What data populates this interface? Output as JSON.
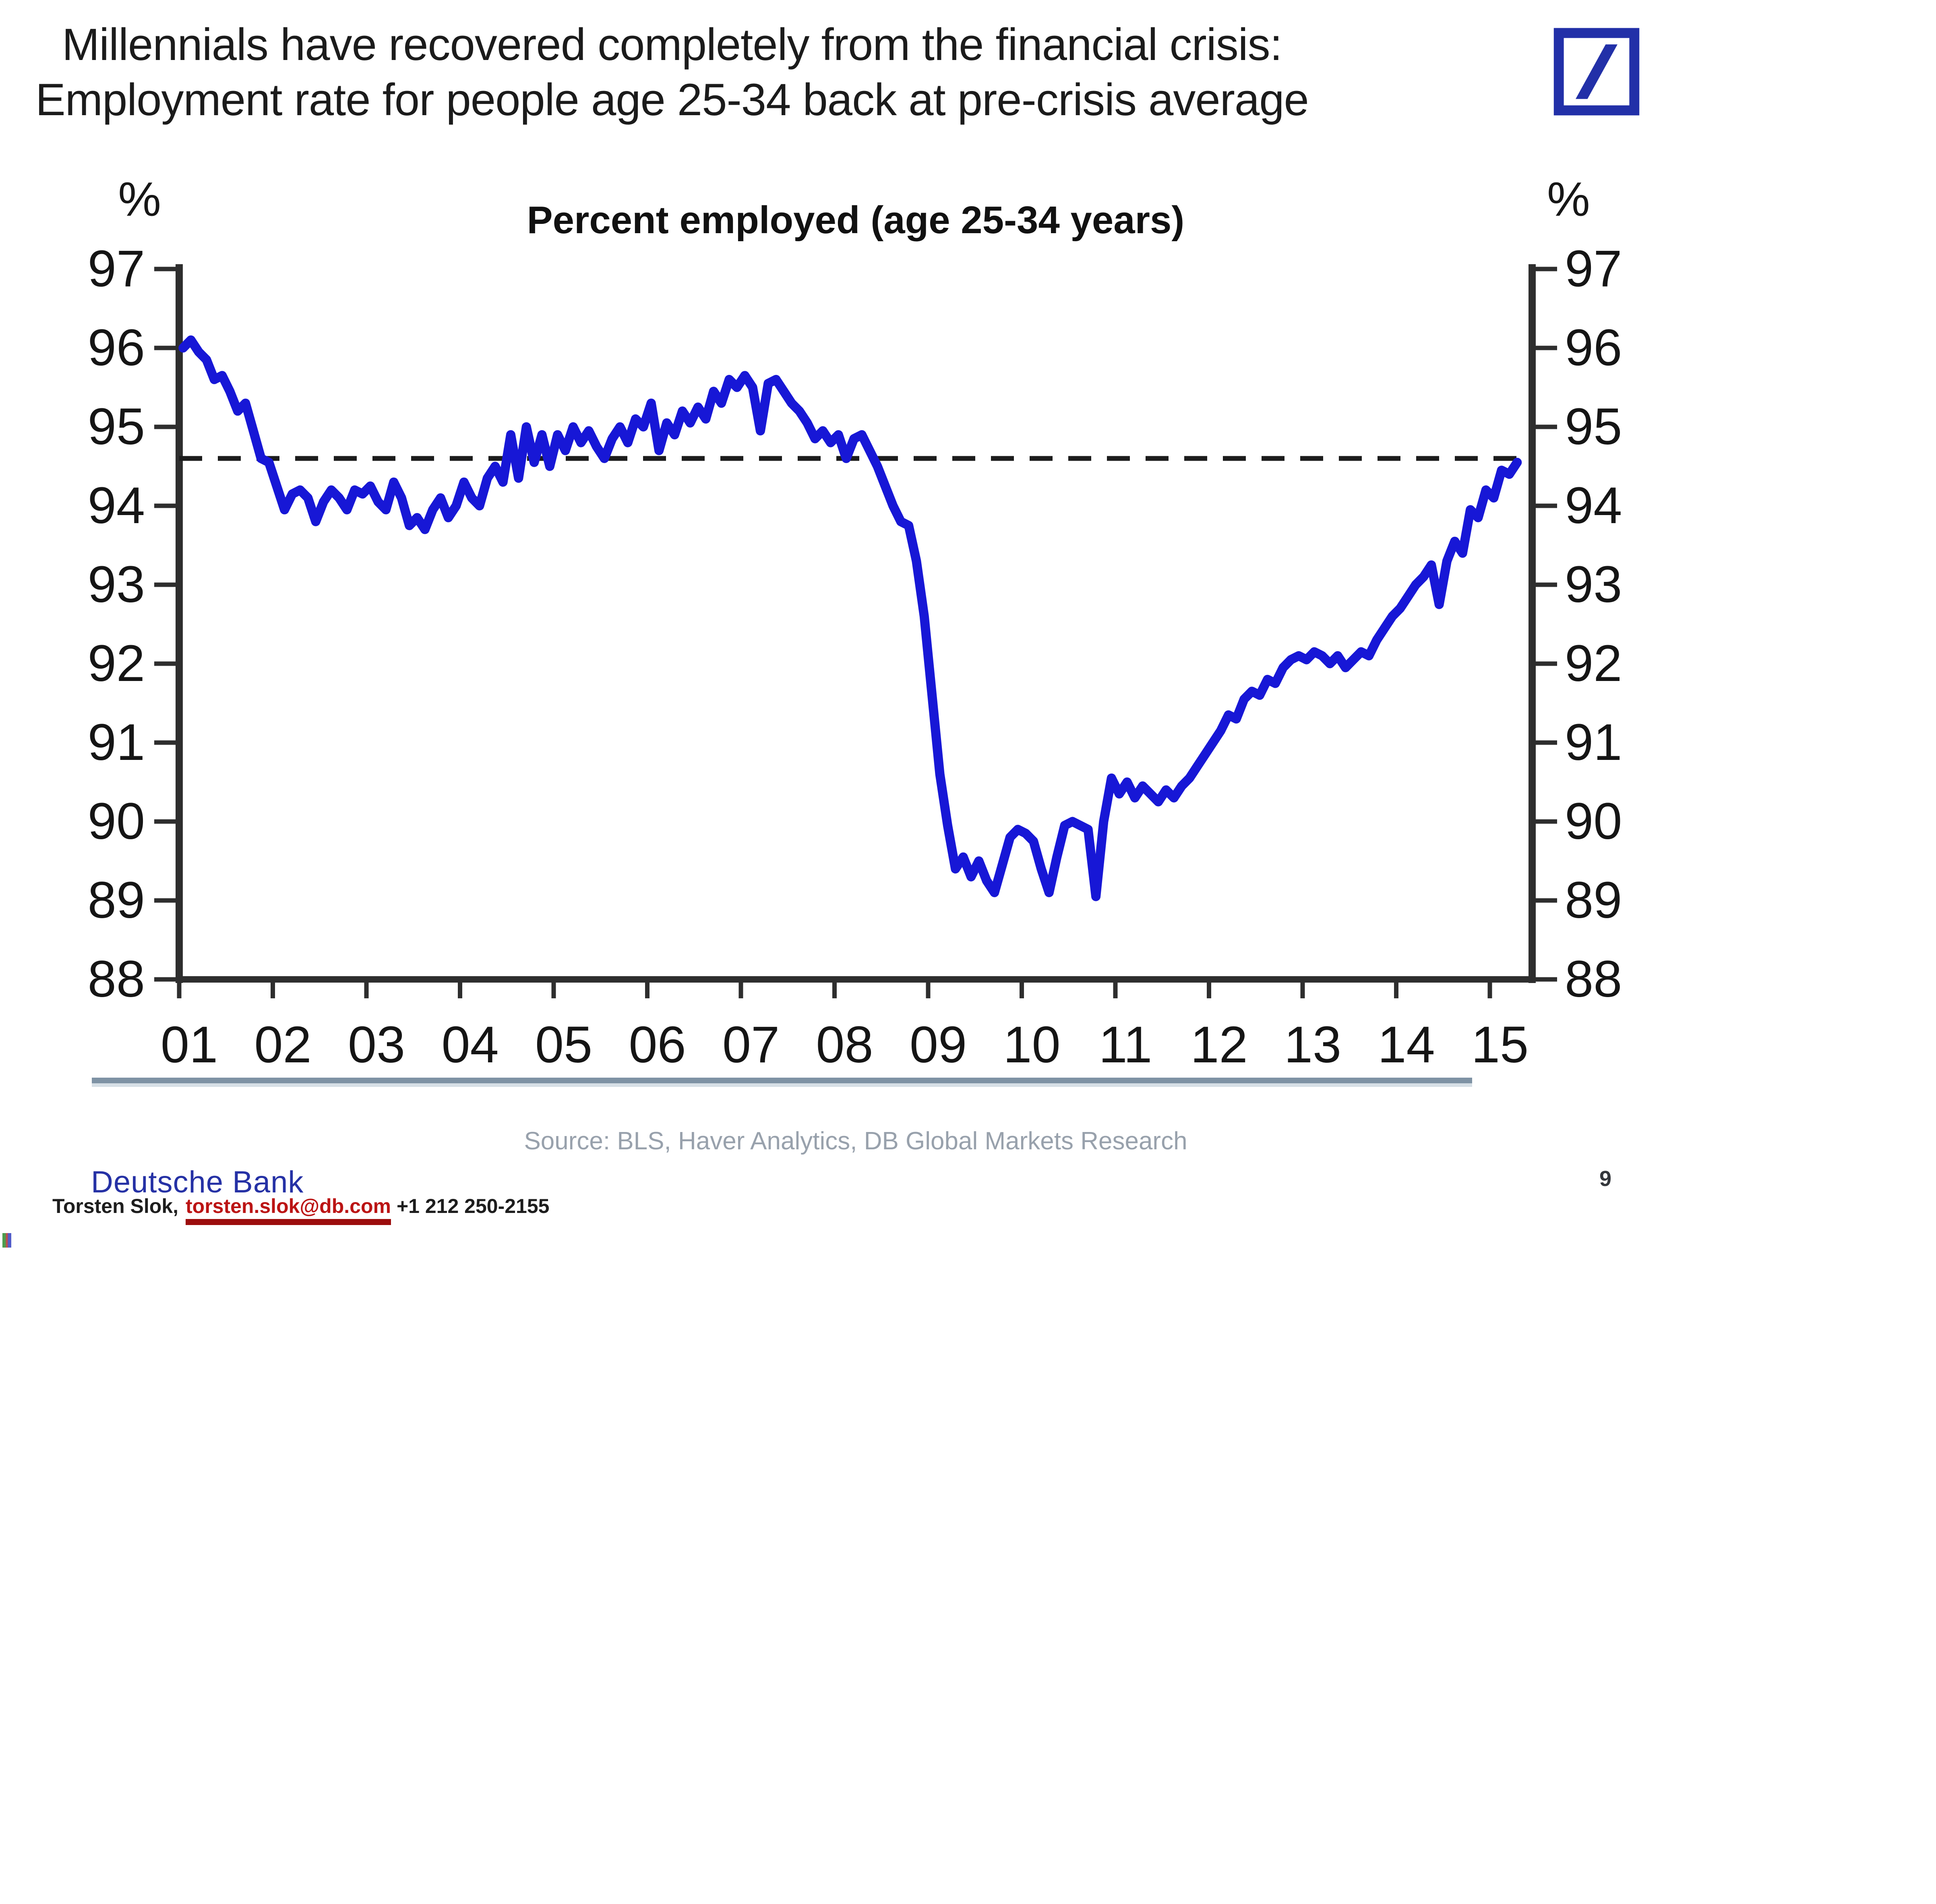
{
  "page": {
    "background": "#ffffff",
    "page_number": "9"
  },
  "title": {
    "line1": "Millennials have recovered completely from the financial crisis:",
    "line2": "Employment rate for people age 25-34 back at pre-crisis average"
  },
  "logo": {
    "name": "deutsche-bank-logo",
    "color": "#2230a8"
  },
  "chart": {
    "heading": "Percent employed (age 25-34 years)",
    "unit_left": "%",
    "unit_right": "%",
    "line_color": "#1717d6",
    "axis_color": "#2e2e2e",
    "dashed_line_color": "#1c1c1c",
    "source": "Source: BLS, Haver Analytics, DB Global Markets Research"
  },
  "chart_data": {
    "type": "line",
    "title": "Percent employed (age 25-34 years)",
    "ylabel": "%",
    "ylim": [
      88,
      97
    ],
    "y_ticks": [
      97,
      96,
      95,
      94,
      93,
      92,
      91,
      90,
      89,
      88
    ],
    "x_tick_labels": [
      "01",
      "02",
      "03",
      "04",
      "05",
      "06",
      "07",
      "08",
      "09",
      "10",
      "11",
      "12",
      "13",
      "14",
      "15"
    ],
    "x_range": "Jan 2001 - Apr 2015, monthly",
    "grid": false,
    "legend_position": "none",
    "reference_line": {
      "value": 94.6,
      "style": "dashed",
      "meaning": "pre-crisis average"
    },
    "series": [
      {
        "name": "Percent employed, age 25-34 years",
        "frequency": "monthly",
        "monthly_values": {
          "2001": [
            96.0,
            96.1,
            95.95,
            95.85,
            95.6,
            95.65,
            95.45,
            95.2,
            95.3,
            94.95,
            94.6,
            94.55
          ],
          "2002": [
            94.25,
            93.95,
            94.15,
            94.2,
            94.1,
            93.8,
            94.05,
            94.2,
            94.1,
            93.95,
            94.2,
            94.15
          ],
          "2003": [
            94.25,
            94.05,
            93.95,
            94.3,
            94.1,
            93.75,
            93.85,
            93.7,
            93.95,
            94.1,
            93.85,
            94.0
          ],
          "2004": [
            94.3,
            94.1,
            94.0,
            94.35,
            94.5,
            94.3,
            94.9,
            94.35,
            95.0,
            94.55,
            94.9,
            94.5
          ],
          "2005": [
            94.9,
            94.7,
            95.0,
            94.8,
            94.95,
            94.75,
            94.6,
            94.85,
            95.0,
            94.8,
            95.1,
            95.0
          ],
          "2006": [
            95.3,
            94.7,
            95.05,
            94.9,
            95.2,
            95.05,
            95.25,
            95.1,
            95.45,
            95.3,
            95.6,
            95.5
          ],
          "2007": [
            95.65,
            95.5,
            94.95,
            95.55,
            95.6,
            95.45,
            95.3,
            95.2,
            95.05,
            94.85,
            94.95,
            94.8
          ],
          "2008": [
            94.9,
            94.6,
            94.85,
            94.9,
            94.7,
            94.5,
            94.25,
            94.0,
            93.8,
            93.75,
            93.3,
            92.6
          ],
          "2009": [
            91.6,
            90.6,
            89.95,
            89.4,
            89.55,
            89.3,
            89.5,
            89.25,
            89.1,
            89.45,
            89.8,
            89.9
          ],
          "2010": [
            89.85,
            89.75,
            89.4,
            89.1,
            89.55,
            89.95,
            90.0,
            89.95,
            89.9,
            89.05,
            90.0,
            90.55
          ],
          "2011": [
            90.35,
            90.5,
            90.3,
            90.45,
            90.35,
            90.25,
            90.4,
            90.3,
            90.45,
            90.55,
            90.7,
            90.85
          ],
          "2012": [
            91.0,
            91.15,
            91.35,
            91.3,
            91.55,
            91.65,
            91.6,
            91.8,
            91.75,
            91.95,
            92.05,
            92.1
          ],
          "2013": [
            92.05,
            92.15,
            92.1,
            92.0,
            92.1,
            91.95,
            92.05,
            92.15,
            92.1,
            92.3,
            92.45,
            92.6
          ],
          "2014": [
            92.7,
            92.85,
            93.0,
            93.1,
            93.25,
            92.75,
            93.3,
            93.55,
            93.4,
            93.95,
            93.85,
            94.2
          ],
          "2015": [
            94.1,
            94.45,
            94.4,
            94.55
          ]
        }
      }
    ]
  },
  "footer": {
    "brand": "Deutsche Bank",
    "contact_name": "Torsten Slok,",
    "contact_email": "torsten.slok@db.com",
    "contact_phone": "+1 212 250-2155"
  }
}
